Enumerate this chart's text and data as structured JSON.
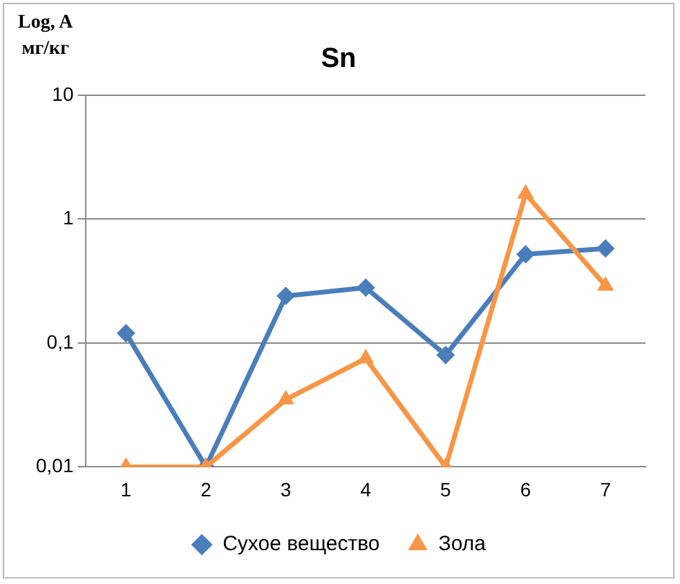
{
  "chart_data": {
    "type": "line",
    "title": "Sn",
    "ylabel": "Log, A\nмг/кг",
    "categories": [
      "1",
      "2",
      "3",
      "4",
      "5",
      "6",
      "7"
    ],
    "series": [
      {
        "name": "Сухое вещество",
        "color": "#4a7ebb",
        "marker": "diamond",
        "values": [
          0.12,
          0.01,
          0.24,
          0.28,
          0.08,
          0.52,
          0.58
        ]
      },
      {
        "name": "Зола",
        "color": "#f79646",
        "marker": "triangle",
        "values": [
          0.01,
          0.01,
          0.035,
          0.075,
          0.01,
          1.6,
          0.29
        ]
      }
    ],
    "log": true,
    "ylim": [
      0.01,
      10
    ],
    "yticks": [
      {
        "value": 0.01,
        "label": "0,01"
      },
      {
        "value": 0.1,
        "label": "0,1"
      },
      1,
      10
    ],
    "grid": "y",
    "legend": "bottom",
    "line_style": "solid"
  }
}
